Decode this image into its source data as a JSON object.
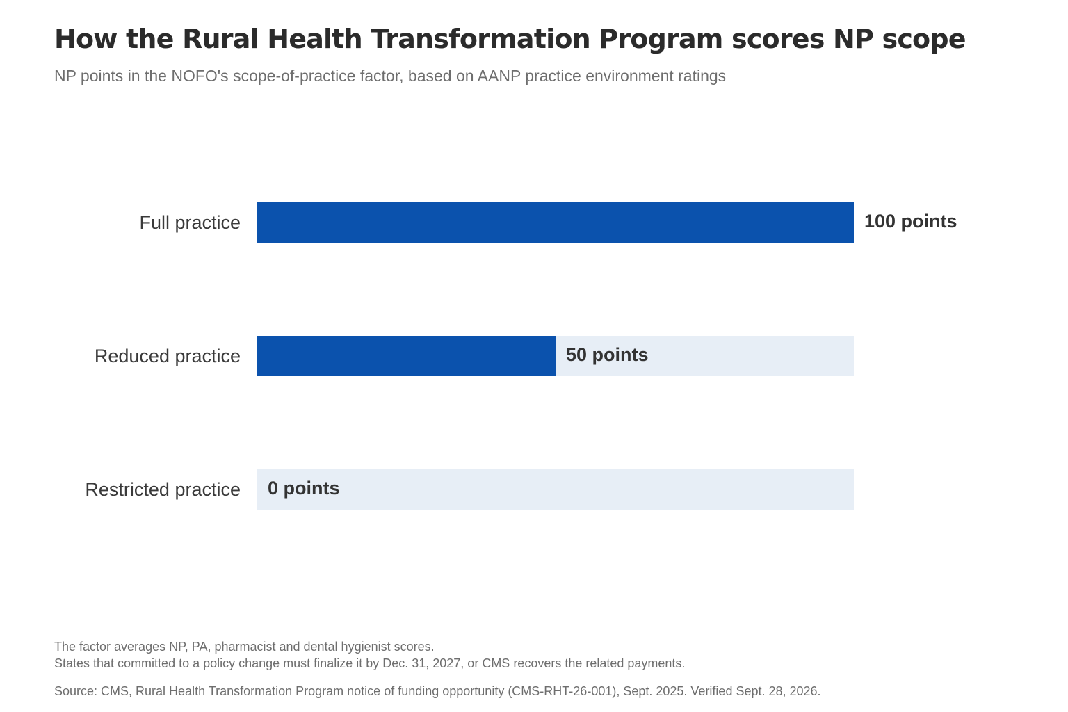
{
  "title": "How the Rural Health Transformation Program scores NP scope",
  "subtitle": "NP points in the NOFO's scope-of-practice factor, based on AANP practice environment ratings",
  "notes": [
    "The factor averages NP, PA, pharmacist and dental hygienist scores.",
    "States that committed to a policy change must finalize it by Dec. 31, 2027, or CMS recovers the related payments."
  ],
  "source": "Source: CMS, Rural Health Transformation Program notice of funding opportunity (CMS-RHT-26-001), Sept. 2025. Verified Sept. 28, 2026.",
  "colors": {
    "bar": "#0b52ad",
    "track": "#e7eef6",
    "axis": "#8a8a8a"
  },
  "chart_data": {
    "type": "bar",
    "orientation": "horizontal",
    "categories": [
      "Full practice",
      "Reduced practice",
      "Restricted practice"
    ],
    "values": [
      100,
      50,
      0
    ],
    "value_labels": [
      "100 points",
      "50 points",
      "0 points"
    ],
    "xlim": [
      0,
      100
    ],
    "grid": false,
    "legend": false
  }
}
